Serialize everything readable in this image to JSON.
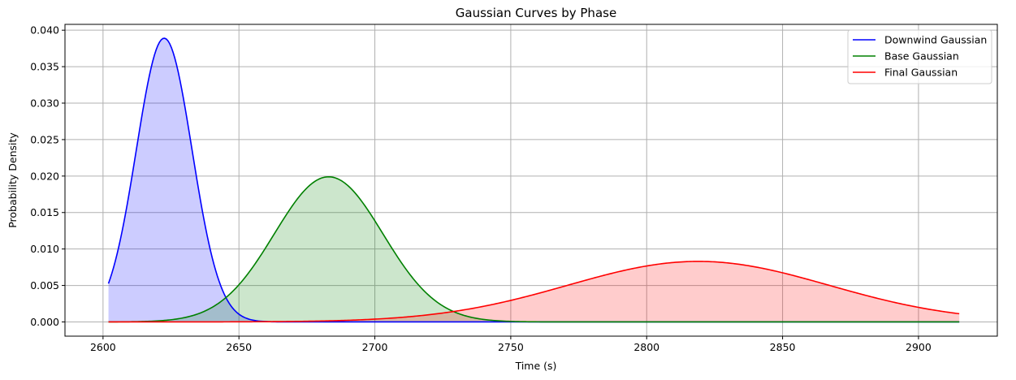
{
  "chart_data": {
    "type": "area",
    "title": "Gaussian Curves by Phase",
    "xlabel": "Time (s)",
    "ylabel": "Probability Density",
    "xlim": [
      2586,
      2929
    ],
    "ylim": [
      -0.00195,
      0.0408
    ],
    "xticks": [
      2600,
      2650,
      2700,
      2750,
      2800,
      2850,
      2900
    ],
    "xtick_labels": [
      "2600",
      "2650",
      "2700",
      "2750",
      "2800",
      "2850",
      "2900"
    ],
    "yticks": [
      0.0,
      0.005,
      0.01,
      0.015,
      0.02,
      0.025,
      0.03,
      0.035,
      0.04
    ],
    "ytick_labels": [
      "0.000",
      "0.005",
      "0.010",
      "0.015",
      "0.020",
      "0.025",
      "0.030",
      "0.035",
      "0.040"
    ],
    "grid": true,
    "legend_position": "top-right",
    "x_range": [
      2602,
      2915
    ],
    "series": [
      {
        "name": "Downwind Gaussian",
        "color": "#0000ff",
        "fill": "#ccccff",
        "mean": 2622.5,
        "std": 10.25,
        "peak": 0.0389
      },
      {
        "name": "Base Gaussian",
        "color": "#008000",
        "fill": "#cce5cc",
        "mean": 2683,
        "std": 20.0,
        "peak": 0.0199
      },
      {
        "name": "Final Gaussian",
        "color": "#ff0000",
        "fill": "#ffcccc",
        "mean": 2819,
        "std": 48.0,
        "peak": 0.0083
      }
    ]
  }
}
